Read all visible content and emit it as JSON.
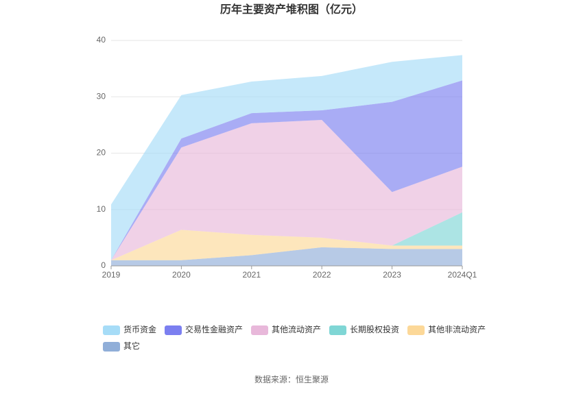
{
  "chart_data": {
    "type": "stacked-area",
    "title": "历年主要资产堆积图（亿元）",
    "categories": [
      "2019",
      "2020",
      "2021",
      "2022",
      "2023",
      "2024Q1"
    ],
    "series": [
      {
        "name": "其它",
        "color": "#90aed8",
        "values": [
          1.0,
          1.0,
          1.9,
          3.3,
          3.0,
          3.0
        ]
      },
      {
        "name": "其他非流动资产",
        "color": "#fcd898",
        "values": [
          0,
          5.4,
          3.6,
          1.7,
          0.6,
          0.6
        ]
      },
      {
        "name": "长期股权投资",
        "color": "#7fd6d5",
        "values": [
          0,
          0,
          0,
          0,
          0,
          5.9
        ]
      },
      {
        "name": "其他流动资产",
        "color": "#e8b8da",
        "values": [
          0,
          14.6,
          19.8,
          20.9,
          9.5,
          8.1
        ]
      },
      {
        "name": "交易性金融资产",
        "color": "#7b7ff0",
        "values": [
          0,
          1.6,
          1.8,
          1.7,
          16.0,
          15.3
        ]
      },
      {
        "name": "货币资金",
        "color": "#a6dcf7",
        "values": [
          9.9,
          7.7,
          5.6,
          6.1,
          7.1,
          4.5
        ]
      }
    ],
    "legend_order": [
      5,
      4,
      3,
      2,
      1,
      0
    ],
    "ylim": [
      0,
      40
    ],
    "yticks": [
      0,
      10,
      20,
      30,
      40
    ],
    "grid": true,
    "source": "数据来源：恒生聚源"
  }
}
